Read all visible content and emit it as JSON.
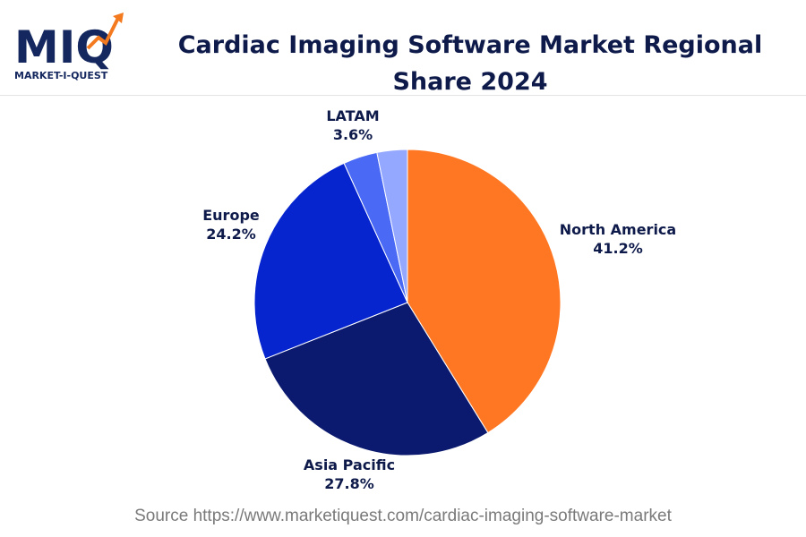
{
  "header": {
    "logo_mark": "MIQ",
    "logo_text": "MARKET-I-QUEST",
    "title": "Cardiac Imaging Software Market Regional Share 2024"
  },
  "footer": {
    "source": "Source https://www.marketiquest.com/cardiac-imaging-software-market"
  },
  "colors": {
    "brand_navy": "#14275e",
    "brand_orange": "#f47a20",
    "label_text": "#0e1a4a"
  },
  "chart_data": {
    "type": "pie",
    "title": "Cardiac Imaging Software Market Regional Share 2024",
    "unit": "%",
    "slices": [
      {
        "label": "North America",
        "value": 41.2,
        "display": "41.2%",
        "color": "#ff7722"
      },
      {
        "label": "Asia Pacific",
        "value": 27.8,
        "display": "27.8%",
        "color": "#0b1a6e"
      },
      {
        "label": "Europe",
        "value": 24.2,
        "display": "24.2%",
        "color": "#0625cf"
      },
      {
        "label": "LATAM",
        "value": 3.6,
        "display": "3.6%",
        "color": "#4a6af5"
      },
      {
        "label": "",
        "value": 3.2,
        "display": "",
        "color": "#94a8ff"
      }
    ]
  }
}
